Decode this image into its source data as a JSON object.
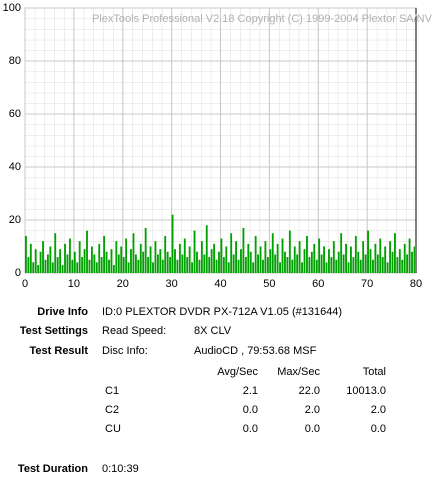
{
  "chart_data": {
    "type": "bar",
    "watermark": "PlexTools Professional V2.18 Copyright (C) 1999-2004 Plextor SA/NV",
    "color": "#00a000",
    "marker_color": "#000000",
    "marker_x": 80,
    "grid": true,
    "xlim": [
      0,
      80
    ],
    "xticks": [
      0,
      10,
      20,
      30,
      40,
      50,
      60,
      70,
      80
    ],
    "ylim": [
      0,
      100
    ],
    "yticks": [
      0,
      20,
      40,
      60,
      80,
      100
    ],
    "x": [
      0,
      0.5,
      1,
      1.5,
      2,
      2.5,
      3,
      3.5,
      4,
      4.5,
      5,
      5.5,
      6,
      6.5,
      7,
      7.5,
      8,
      8.5,
      9,
      9.5,
      10,
      10.5,
      11,
      11.5,
      12,
      12.5,
      13,
      13.5,
      14,
      14.5,
      15,
      15.5,
      16,
      16.5,
      17,
      17.5,
      18,
      18.5,
      19,
      19.5,
      20,
      20.5,
      21,
      21.5,
      22,
      22.5,
      23,
      23.5,
      24,
      24.5,
      25,
      25.5,
      26,
      26.5,
      27,
      27.5,
      28,
      28.5,
      29,
      29.5,
      30,
      30.5,
      31,
      31.5,
      32,
      32.5,
      33,
      33.5,
      34,
      34.5,
      35,
      35.5,
      36,
      36.5,
      37,
      37.5,
      38,
      38.5,
      39,
      39.5,
      40,
      40.5,
      41,
      41.5,
      42,
      42.5,
      43,
      43.5,
      44,
      44.5,
      45,
      45.5,
      46,
      46.5,
      47,
      47.5,
      48,
      48.5,
      49,
      49.5,
      50,
      50.5,
      51,
      51.5,
      52,
      52.5,
      53,
      53.5,
      54,
      54.5,
      55,
      55.5,
      56,
      56.5,
      57,
      57.5,
      58,
      58.5,
      59,
      59.5,
      60,
      60.5,
      61,
      61.5,
      62,
      62.5,
      63,
      63.5,
      64,
      64.5,
      65,
      65.5,
      66,
      66.5,
      67,
      67.5,
      68,
      68.5,
      69,
      69.5,
      70,
      70.5,
      71,
      71.5,
      72,
      72.5,
      73,
      73.5,
      74,
      74.5,
      75,
      75.5,
      76,
      76.5,
      77,
      77.5,
      78,
      78.5,
      79,
      79.5
    ],
    "values": [
      14,
      6,
      11,
      4,
      9,
      3,
      8,
      12,
      5,
      7,
      10,
      4,
      15,
      6,
      9,
      3,
      11,
      7,
      13,
      5,
      8,
      4,
      12,
      6,
      9,
      16,
      5,
      10,
      7,
      4,
      11,
      6,
      14,
      8,
      5,
      9,
      3,
      12,
      7,
      10,
      6,
      13,
      4,
      9,
      15,
      7,
      5,
      11,
      8,
      17,
      6,
      10,
      4,
      12,
      7,
      9,
      5,
      14,
      8,
      6,
      22,
      9,
      5,
      11,
      7,
      13,
      6,
      10,
      4,
      16,
      8,
      5,
      12,
      7,
      18,
      6,
      9,
      11,
      5,
      8,
      13,
      6,
      10,
      4,
      15,
      7,
      12,
      5,
      9,
      17,
      6,
      11,
      8,
      4,
      14,
      7,
      10,
      5,
      12,
      6,
      9,
      15,
      7,
      11,
      4,
      13,
      8,
      6,
      16,
      5,
      10,
      7,
      12,
      4,
      9,
      14,
      6,
      8,
      11,
      5,
      13,
      7,
      10,
      4,
      9,
      6,
      12,
      5,
      8,
      15,
      7,
      11,
      4,
      10,
      6,
      14,
      8,
      5,
      12,
      7,
      16,
      9,
      5,
      11,
      7,
      13,
      6,
      10,
      4,
      12,
      8,
      15,
      6,
      9,
      5,
      11,
      7,
      13,
      8,
      10
    ]
  },
  "info": {
    "drive_label": "Drive Info",
    "drive_value": "ID:0 PLEXTOR DVDR PX-712A V1.05 (#131644)",
    "settings_label": "Test Settings",
    "settings_key": "Read Speed:",
    "settings_value": "8X CLV",
    "result_label": "Test Result",
    "result_key": "Disc Info:",
    "result_value": "AudioCD , 79:53.68 MSF",
    "table": {
      "header": [
        "Avg/Sec",
        "Max/Sec",
        "Total"
      ],
      "rows": [
        [
          "C1",
          "2.1",
          "22.0",
          "10013.0"
        ],
        [
          "C2",
          "0.0",
          "2.0",
          "2.0"
        ],
        [
          "CU",
          "0.0",
          "0.0",
          "0.0"
        ]
      ]
    },
    "duration_label": "Test Duration",
    "duration_value": "0:10:39"
  }
}
